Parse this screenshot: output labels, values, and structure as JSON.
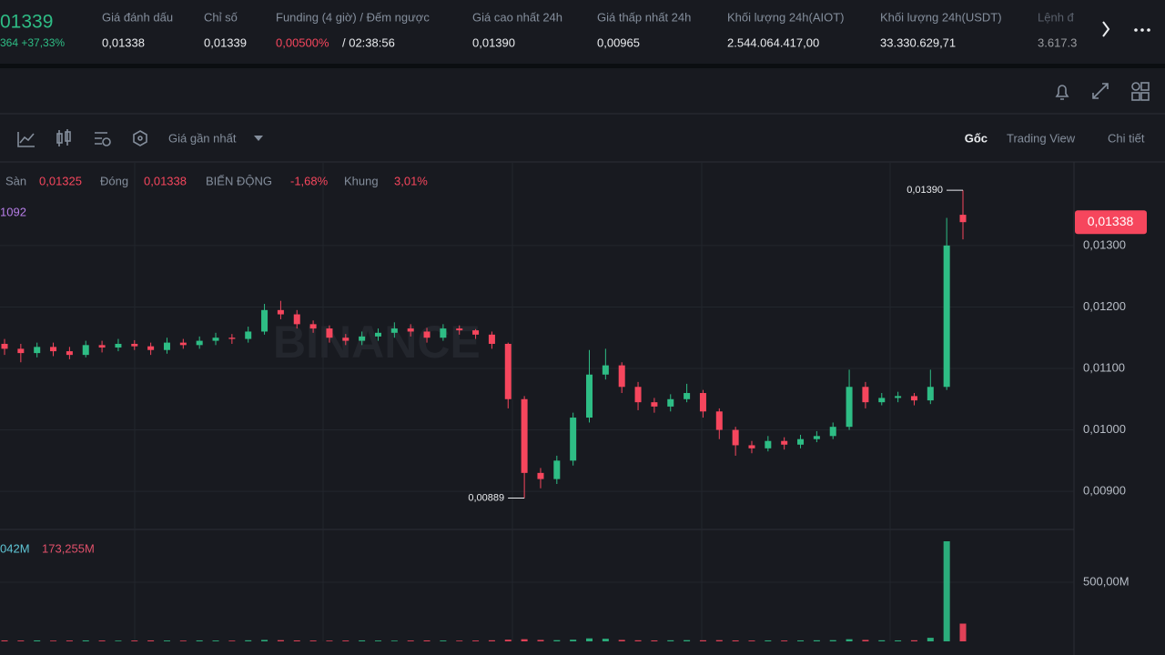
{
  "header": {
    "price": "01339",
    "change": "364 +37,33%",
    "stats": [
      {
        "label": "Giá đánh dấu",
        "value": "0,01338"
      },
      {
        "label": "Chỉ số",
        "value": "0,01339"
      },
      {
        "label": "Funding (4 giờ) / Đếm ngược",
        "value": "0,00500%",
        "value2": "/ 02:38:56"
      },
      {
        "label": "Giá cao nhất 24h",
        "value": "0,01390"
      },
      {
        "label": "Giá thấp nhất 24h",
        "value": "0,00965"
      },
      {
        "label": "Khối lượng 24h(AIOT)",
        "value": "2.544.064.417,00"
      },
      {
        "label": "Khối lượng 24h(USDT)",
        "value": "33.330.629,71"
      },
      {
        "label": "Lệnh đ",
        "value": "3.617.3"
      }
    ]
  },
  "toolbar": {
    "price_type": "Giá gần nhất",
    "views": [
      "Gốc",
      "Trading View",
      "Chi tiết"
    ]
  },
  "legend": {
    "items": [
      {
        "label": "Sàn",
        "value": "0,01325"
      },
      {
        "label": "Đóng",
        "value": "0,01338"
      },
      {
        "label": "BIẾN ĐỘNG",
        "value": "-1,68%"
      },
      {
        "label": "Khung",
        "value": "3,01%"
      }
    ],
    "ma_value": "1092",
    "volume_values": [
      "042M",
      "173,255M"
    ]
  },
  "watermark": "BINANCE",
  "chart_data": {
    "type": "candlestick",
    "up_color": "#2ebd85",
    "down_color": "#f6465d",
    "open": [
      0.0114,
      0.01132,
      0.01125,
      0.01135,
      0.01128,
      0.01122,
      0.01138,
      0.01134,
      0.0114,
      0.01136,
      0.0113,
      0.01142,
      0.01138,
      0.01145,
      0.0115,
      0.01148,
      0.0116,
      0.01195,
      0.01188,
      0.01172,
      0.01165,
      0.0115,
      0.01145,
      0.01152,
      0.01158,
      0.01165,
      0.0116,
      0.0115,
      0.01165,
      0.01162,
      0.01155,
      0.0114,
      0.0105,
      0.0093,
      0.0092,
      0.0095,
      0.0102,
      0.0109,
      0.01105,
      0.0107,
      0.01045,
      0.01038,
      0.0105,
      0.0106,
      0.0103,
      0.01,
      0.00975,
      0.0097,
      0.00982,
      0.00976,
      0.00985,
      0.0099,
      0.01005,
      0.0107,
      0.01045,
      0.01052,
      0.01055,
      0.01048,
      0.0107,
      0.0135
    ],
    "high": [
      0.01148,
      0.0114,
      0.01142,
      0.01142,
      0.01135,
      0.01145,
      0.01145,
      0.01148,
      0.01146,
      0.01142,
      0.0115,
      0.01148,
      0.01152,
      0.01158,
      0.01156,
      0.01168,
      0.01205,
      0.0121,
      0.01195,
      0.01178,
      0.0117,
      0.01156,
      0.0116,
      0.01165,
      0.01175,
      0.01172,
      0.01166,
      0.01172,
      0.0117,
      0.01164,
      0.0116,
      0.01142,
      0.01055,
      0.00938,
      0.00958,
      0.01028,
      0.0113,
      0.01132,
      0.0111,
      0.01078,
      0.01052,
      0.01058,
      0.01075,
      0.01065,
      0.01035,
      0.01005,
      0.00982,
      0.0099,
      0.00988,
      0.00992,
      0.00998,
      0.01012,
      0.01098,
      0.01078,
      0.0106,
      0.01062,
      0.0106,
      0.01098,
      0.01345,
      0.0139
    ],
    "low": [
      0.01122,
      0.0111,
      0.01118,
      0.0112,
      0.01115,
      0.01118,
      0.01126,
      0.01128,
      0.0113,
      0.01122,
      0.01124,
      0.01132,
      0.01132,
      0.01138,
      0.0114,
      0.01142,
      0.01155,
      0.0118,
      0.01165,
      0.01158,
      0.01142,
      0.01138,
      0.01138,
      0.01145,
      0.0115,
      0.01152,
      0.01142,
      0.01145,
      0.01155,
      0.01148,
      0.01132,
      0.01035,
      0.00889,
      0.00905,
      0.00912,
      0.00942,
      0.01012,
      0.01082,
      0.0106,
      0.01032,
      0.01028,
      0.0103,
      0.01045,
      0.0102,
      0.00985,
      0.00958,
      0.00962,
      0.00965,
      0.00968,
      0.0097,
      0.0098,
      0.00985,
      0.01,
      0.01035,
      0.0104,
      0.01045,
      0.0104,
      0.01042,
      0.01065,
      0.0131
    ],
    "close": [
      0.01132,
      0.01125,
      0.01135,
      0.01128,
      0.01122,
      0.01138,
      0.01134,
      0.0114,
      0.01136,
      0.0113,
      0.01142,
      0.01138,
      0.01145,
      0.0115,
      0.01148,
      0.0116,
      0.01195,
      0.01188,
      0.01172,
      0.01165,
      0.0115,
      0.01145,
      0.01152,
      0.01158,
      0.01165,
      0.0116,
      0.0115,
      0.01165,
      0.01162,
      0.01155,
      0.0114,
      0.0105,
      0.0093,
      0.0092,
      0.0095,
      0.0102,
      0.0109,
      0.01105,
      0.0107,
      0.01045,
      0.01038,
      0.0105,
      0.0106,
      0.0103,
      0.01,
      0.00975,
      0.0097,
      0.00982,
      0.00976,
      0.00985,
      0.0099,
      0.01005,
      0.0107,
      0.01045,
      0.01052,
      0.01055,
      0.01048,
      0.0107,
      0.013,
      0.01338
    ],
    "volume": [
      8,
      7,
      8,
      6,
      7,
      8,
      7,
      6,
      7,
      8,
      7,
      6,
      8,
      7,
      6,
      9,
      12,
      10,
      8,
      7,
      6,
      7,
      8,
      7,
      6,
      7,
      8,
      7,
      6,
      7,
      9,
      14,
      18,
      12,
      10,
      14,
      25,
      22,
      12,
      9,
      8,
      9,
      10,
      9,
      10,
      8,
      7,
      8,
      7,
      8,
      9,
      10,
      18,
      12,
      9,
      8,
      9,
      30,
      846,
      150
    ],
    "ylim": [
      0.00838,
      0.01436
    ],
    "yticks": [
      {
        "value": 0.009,
        "label": "0,00900"
      },
      {
        "value": 0.01,
        "label": "0,01000"
      },
      {
        "value": 0.011,
        "label": "0,01100"
      },
      {
        "value": 0.012,
        "label": "0,01200"
      },
      {
        "value": 0.013,
        "label": "0,01300"
      }
    ],
    "volume_ylim": [
      0,
      946
    ],
    "volume_yticks": [
      {
        "value": 500,
        "label": "500,00M"
      }
    ],
    "last_price": 0.01338,
    "last_price_label": "0,01338",
    "annotations": [
      {
        "value": 0.0139,
        "label": "0,01390"
      },
      {
        "value": 0.00889,
        "label": "0,00889"
      }
    ],
    "grid": true
  }
}
